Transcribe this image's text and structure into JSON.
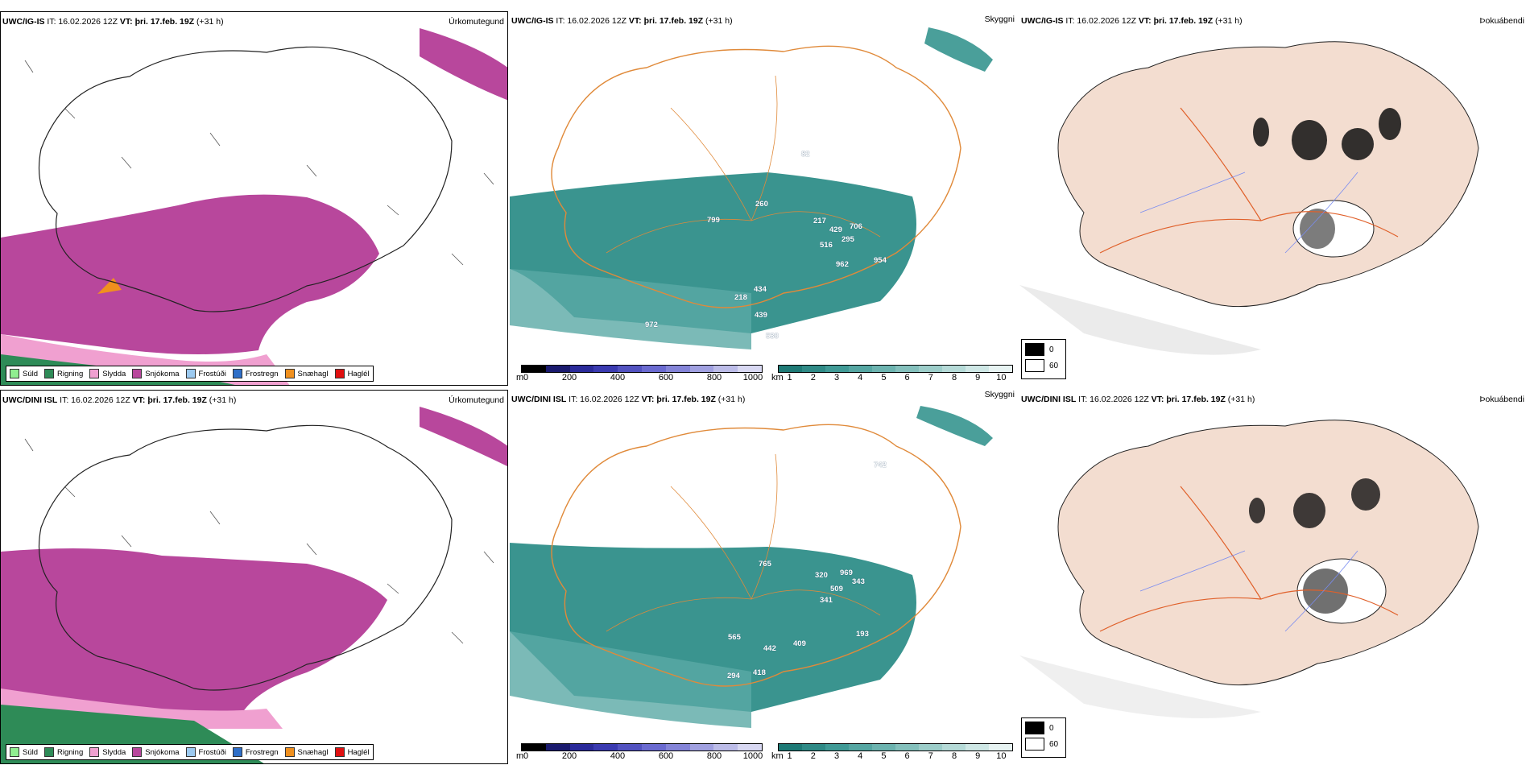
{
  "top": {
    "header": {
      "model": "UWC/IG-IS",
      "it": "IT: 16.02.2026 12Z",
      "vt_label": "VT:",
      "vt": "þri. 17.feb. 19Z",
      "lead": "(+31 h)"
    },
    "panels": {
      "precip_type": "Úrkomutegund",
      "visibility": "Skyggni",
      "fog": "Þokuábendi"
    },
    "vis_labels": [
      "82",
      "260",
      "799",
      "217",
      "429",
      "706",
      "295",
      "516",
      "962",
      "954",
      "218",
      "434",
      "439",
      "972",
      "530"
    ]
  },
  "bottom": {
    "header": {
      "model": "UWC/DINI ISL",
      "it": "IT: 16.02.2026 12Z",
      "vt_label": "VT:",
      "vt": "þri. 17.feb. 19Z",
      "lead": "(+31 h)"
    },
    "panels": {
      "precip_type": "Úrkomutegund",
      "visibility": "Skyggni",
      "fog": "Þokuábendi"
    },
    "vis_labels": [
      "742",
      "765",
      "320",
      "969",
      "343",
      "509",
      "341",
      "565",
      "442",
      "409",
      "193",
      "418",
      "294"
    ]
  },
  "precip_legend": [
    {
      "label": "Súld",
      "color": "#90ee90"
    },
    {
      "label": "Rigning",
      "color": "#2e8b57"
    },
    {
      "label": "Slydda",
      "color": "#f0a0d0"
    },
    {
      "label": "Snjókoma",
      "color": "#b8479c"
    },
    {
      "label": "Frostúði",
      "color": "#9ccaf0"
    },
    {
      "label": "Frostregn",
      "color": "#2f6fc8"
    },
    {
      "label": "Snæhagl",
      "color": "#f0901e"
    },
    {
      "label": "Haglél",
      "color": "#e01010"
    }
  ],
  "height_scale": {
    "unit": "m",
    "ticks": [
      "0",
      "200",
      "400",
      "600",
      "800",
      "1000"
    ],
    "colors": [
      "#000000",
      "#1a1a6e",
      "#2a2a9a",
      "#3a3ab0",
      "#5252c0",
      "#6a6ad0",
      "#8484d8",
      "#a0a0e0",
      "#bcbce8",
      "#d8d8f2"
    ]
  },
  "vis_scale": {
    "unit": "km",
    "ticks": [
      "1",
      "2",
      "3",
      "4",
      "5",
      "6",
      "7",
      "8",
      "9",
      "10"
    ],
    "colors": [
      "#1e7a76",
      "#2f8a86",
      "#409a96",
      "#55a6a2",
      "#6cb3af",
      "#84c0bc",
      "#9ccdc9",
      "#b5dad7",
      "#cee7e5",
      "#e7f3f2"
    ]
  },
  "fog_scale": {
    "black": "0",
    "white": "60"
  },
  "colors": {
    "snow": "#b8479c",
    "rain": "#2e8b57",
    "sleet": "#f0a0d0",
    "teal": "#2f8e89",
    "land": "#f3ddd0",
    "road": "#e0602a",
    "river": "#7a8cf0"
  }
}
